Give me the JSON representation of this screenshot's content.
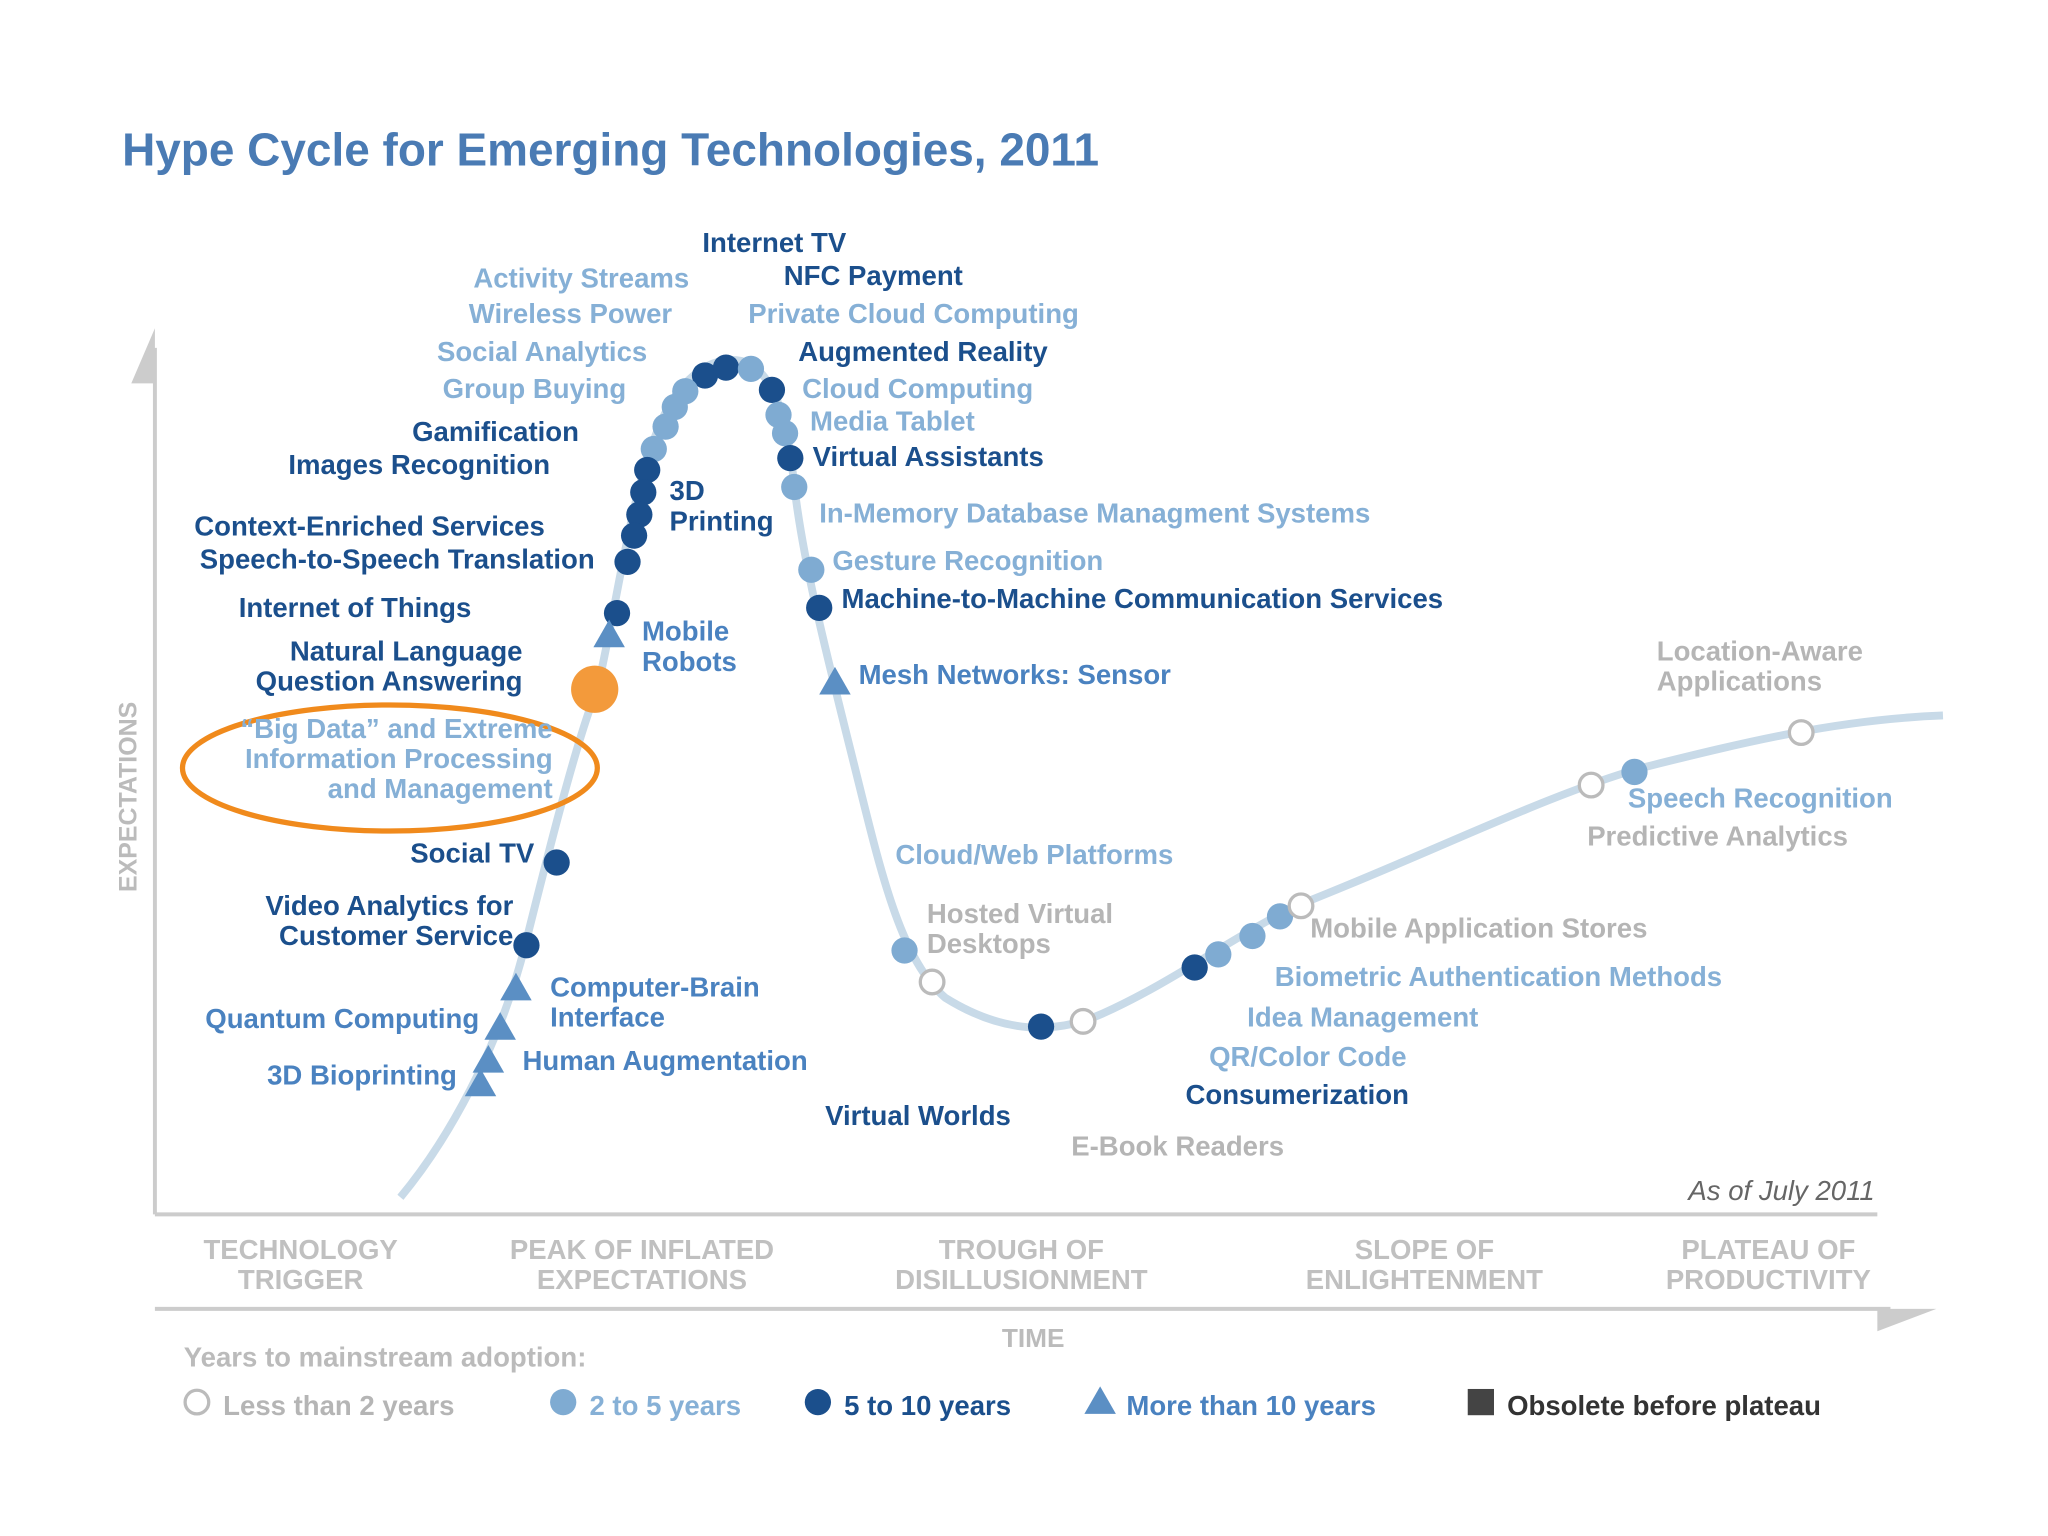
{
  "title": "Hype Cycle for Emerging Technologies, 2011",
  "y_axis_label": "EXPECTATIONS",
  "x_axis_label": "TIME",
  "note": "As of July 2011",
  "phases": [
    [
      "TECHNOLOGY",
      "TRIGGER"
    ],
    [
      "PEAK OF INFLATED",
      "EXPECTATIONS"
    ],
    [
      "TROUGH OF",
      "DISILLUSIONMENT"
    ],
    [
      "SLOPE OF",
      "ENLIGHTENMENT"
    ],
    [
      "PLATEAU OF",
      "PRODUCTIVITY"
    ]
  ],
  "legend": {
    "title": "Years to mainstream adoption:",
    "items": [
      "Less than 2 years",
      "2 to 5 years",
      "5 to 10 years",
      "More than 10 years",
      "Obsolete before plateau"
    ]
  },
  "technologies": [
    {
      "label": [
        "Internet TV"
      ]
    },
    {
      "label": [
        "NFC Payment"
      ]
    },
    {
      "label": [
        "Private Cloud Computing"
      ]
    },
    {
      "label": [
        "Activity Streams"
      ]
    },
    {
      "label": [
        "Wireless Power"
      ]
    },
    {
      "label": [
        "Social Analytics"
      ]
    },
    {
      "label": [
        "Group Buying"
      ]
    },
    {
      "label": [
        "Augmented Reality"
      ]
    },
    {
      "label": [
        "Cloud Computing"
      ]
    },
    {
      "label": [
        "Media Tablet"
      ]
    },
    {
      "label": [
        "Virtual Assistants"
      ]
    },
    {
      "label": [
        "Gamification"
      ]
    },
    {
      "label": [
        "Images Recognition"
      ]
    },
    {
      "label": [
        "3D",
        "Printing"
      ]
    },
    {
      "label": [
        "In-Memory Database Managment Systems"
      ]
    },
    {
      "label": [
        "Context-Enriched Services"
      ]
    },
    {
      "label": [
        "Speech-to-Speech Translation"
      ]
    },
    {
      "label": [
        "Gesture Recognition"
      ]
    },
    {
      "label": [
        "Internet of Things"
      ]
    },
    {
      "label": [
        "Machine-to-Machine Communication Services"
      ]
    },
    {
      "label": [
        "Mobile",
        "Robots"
      ]
    },
    {
      "label": [
        "Natural Language",
        "Question Answering"
      ]
    },
    {
      "label": [
        "Mesh Networks: Sensor"
      ]
    },
    {
      "label": [
        "“Big Data” and Extreme",
        "Information Processing",
        "and Management"
      ]
    },
    {
      "label": [
        "Social TV"
      ]
    },
    {
      "label": [
        "Cloud/Web Platforms"
      ]
    },
    {
      "label": [
        "Hosted Virtual",
        "Desktops"
      ]
    },
    {
      "label": [
        "Video Analytics for",
        "Customer Service"
      ]
    },
    {
      "label": [
        "Computer-Brain",
        "Interface"
      ]
    },
    {
      "label": [
        "Quantum Computing"
      ]
    },
    {
      "label": [
        "Human Augmentation"
      ]
    },
    {
      "label": [
        "3D Bioprinting"
      ]
    },
    {
      "label": [
        "Virtual Worlds"
      ]
    },
    {
      "label": [
        "E-Book Readers"
      ]
    },
    {
      "label": [
        "Consumerization"
      ]
    },
    {
      "label": [
        "QR/Color Code"
      ]
    },
    {
      "label": [
        "Idea Management"
      ]
    },
    {
      "label": [
        "Biometric Authentication Methods"
      ]
    },
    {
      "label": [
        "Mobile Application Stores"
      ]
    },
    {
      "label": [
        "Predictive Analytics"
      ]
    },
    {
      "label": [
        "Speech Recognition"
      ]
    },
    {
      "label": [
        "Location-Aware",
        "Applications"
      ]
    }
  ]
}
